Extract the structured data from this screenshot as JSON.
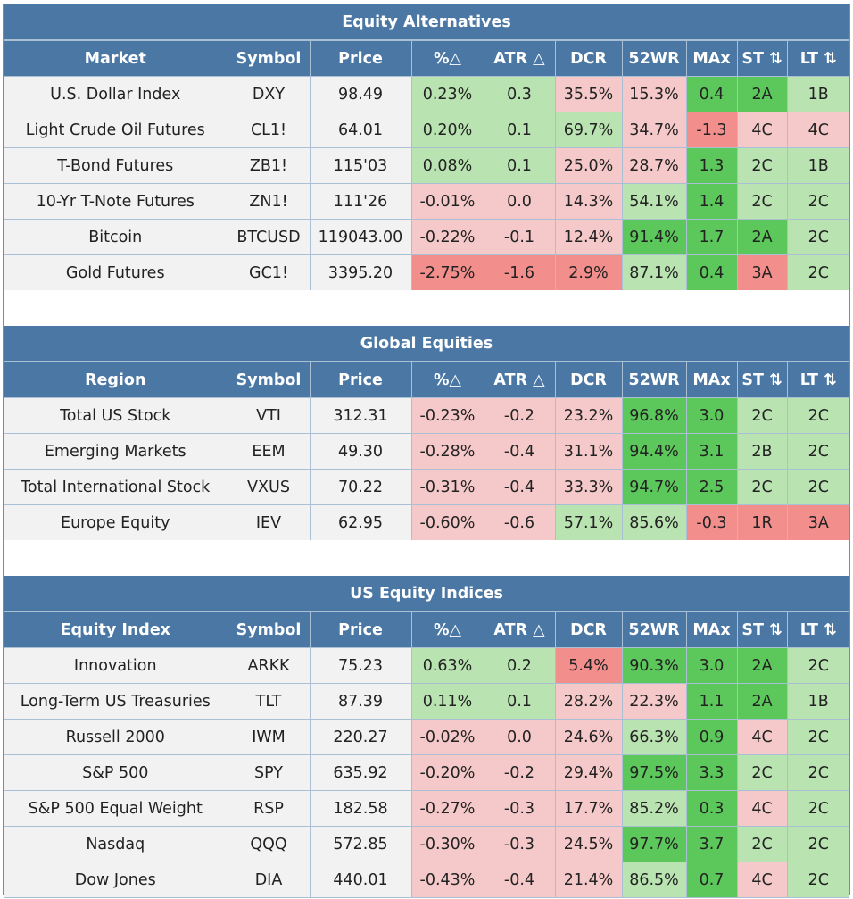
{
  "colors": {
    "header": "#4a77a4",
    "cell": "#f2f2f2",
    "green": "#b9e3b1",
    "red": "#f5c9c9",
    "dgreen": "#5cc75a",
    "dred": "#f28f8d"
  },
  "sections": [
    {
      "title": "Equity Alternatives",
      "headers": [
        "Market",
        "Symbol",
        "Price",
        "%△",
        "ATR △",
        "DCR",
        "52WR",
        "MAx",
        "ST ⇅",
        "LT ⇅"
      ],
      "rows": [
        {
          "cells": [
            "U.S. Dollar Index",
            "DXY",
            "98.49",
            "0.23%",
            "0.3",
            "35.5%",
            "15.3%",
            "0.4",
            "2A",
            "1B"
          ],
          "colors": [
            "cell",
            "cell",
            "cell",
            "green",
            "green",
            "red",
            "red",
            "dgreen",
            "dgreen",
            "green"
          ]
        },
        {
          "cells": [
            "Light Crude Oil Futures",
            "CL1!",
            "64.01",
            "0.20%",
            "0.1",
            "69.7%",
            "34.7%",
            "-1.3",
            "4C",
            "4C"
          ],
          "colors": [
            "cell",
            "cell",
            "cell",
            "green",
            "green",
            "green",
            "red",
            "dred",
            "red",
            "red"
          ]
        },
        {
          "cells": [
            "T-Bond Futures",
            "ZB1!",
            "115'03",
            "0.08%",
            "0.1",
            "25.0%",
            "28.7%",
            "1.3",
            "2C",
            "1B"
          ],
          "colors": [
            "cell",
            "cell",
            "cell",
            "green",
            "green",
            "red",
            "red",
            "dgreen",
            "green",
            "green"
          ]
        },
        {
          "cells": [
            "10-Yr T-Note Futures",
            "ZN1!",
            "111'26",
            "-0.01%",
            "0.0",
            "14.3%",
            "54.1%",
            "1.4",
            "2C",
            "2C"
          ],
          "colors": [
            "cell",
            "cell",
            "cell",
            "red",
            "red",
            "red",
            "green",
            "dgreen",
            "green",
            "green"
          ]
        },
        {
          "cells": [
            "Bitcoin",
            "BTCUSD",
            "119043.00",
            "-0.22%",
            "-0.1",
            "12.4%",
            "91.4%",
            "1.7",
            "2A",
            "2C"
          ],
          "colors": [
            "cell",
            "cell",
            "cell",
            "red",
            "red",
            "red",
            "dgreen",
            "dgreen",
            "dgreen",
            "green"
          ]
        },
        {
          "cells": [
            "Gold Futures",
            "GC1!",
            "3395.20",
            "-2.75%",
            "-1.6",
            "2.9%",
            "87.1%",
            "0.4",
            "3A",
            "2C"
          ],
          "colors": [
            "cell",
            "cell",
            "cell",
            "dred",
            "dred",
            "dred",
            "green",
            "dgreen",
            "dred",
            "green"
          ]
        }
      ]
    },
    {
      "title": "Global Equities",
      "headers": [
        "Region",
        "Symbol",
        "Price",
        "%△",
        "ATR △",
        "DCR",
        "52WR",
        "MAx",
        "ST ⇅",
        "LT ⇅"
      ],
      "rows": [
        {
          "cells": [
            "Total US Stock",
            "VTI",
            "312.31",
            "-0.23%",
            "-0.2",
            "23.2%",
            "96.8%",
            "3.0",
            "2C",
            "2C"
          ],
          "colors": [
            "cell",
            "cell",
            "cell",
            "red",
            "red",
            "red",
            "dgreen",
            "dgreen",
            "green",
            "green"
          ]
        },
        {
          "cells": [
            "Emerging Markets",
            "EEM",
            "49.30",
            "-0.28%",
            "-0.4",
            "31.1%",
            "94.4%",
            "3.1",
            "2B",
            "2C"
          ],
          "colors": [
            "cell",
            "cell",
            "cell",
            "red",
            "red",
            "red",
            "dgreen",
            "dgreen",
            "green",
            "green"
          ]
        },
        {
          "cells": [
            "Total International Stock",
            "VXUS",
            "70.22",
            "-0.31%",
            "-0.4",
            "33.3%",
            "94.7%",
            "2.5",
            "2C",
            "2C"
          ],
          "colors": [
            "cell",
            "cell",
            "cell",
            "red",
            "red",
            "red",
            "dgreen",
            "dgreen",
            "green",
            "green"
          ]
        },
        {
          "cells": [
            "Europe Equity",
            "IEV",
            "62.95",
            "-0.60%",
            "-0.6",
            "57.1%",
            "85.6%",
            "-0.3",
            "1R",
            "3A"
          ],
          "colors": [
            "cell",
            "cell",
            "cell",
            "red",
            "red",
            "green",
            "green",
            "dred",
            "dred",
            "dred"
          ]
        }
      ]
    },
    {
      "title": "US Equity Indices",
      "headers": [
        "Equity Index",
        "Symbol",
        "Price",
        "%△",
        "ATR △",
        "DCR",
        "52WR",
        "MAx",
        "ST ⇅",
        "LT ⇅"
      ],
      "rows": [
        {
          "cells": [
            "Innovation",
            "ARKK",
            "75.23",
            "0.63%",
            "0.2",
            "5.4%",
            "90.3%",
            "3.0",
            "2A",
            "2C"
          ],
          "colors": [
            "cell",
            "cell",
            "cell",
            "green",
            "green",
            "dred",
            "dgreen",
            "dgreen",
            "dgreen",
            "green"
          ]
        },
        {
          "cells": [
            "Long-Term US Treasuries",
            "TLT",
            "87.39",
            "0.11%",
            "0.1",
            "28.2%",
            "22.3%",
            "1.1",
            "2A",
            "1B"
          ],
          "colors": [
            "cell",
            "cell",
            "cell",
            "green",
            "green",
            "red",
            "red",
            "dgreen",
            "dgreen",
            "green"
          ]
        },
        {
          "cells": [
            "Russell 2000",
            "IWM",
            "220.27",
            "-0.02%",
            "0.0",
            "24.6%",
            "66.3%",
            "0.9",
            "4C",
            "2C"
          ],
          "colors": [
            "cell",
            "cell",
            "cell",
            "red",
            "red",
            "red",
            "green",
            "dgreen",
            "red",
            "green"
          ]
        },
        {
          "cells": [
            "S&P 500",
            "SPY",
            "635.92",
            "-0.20%",
            "-0.2",
            "29.4%",
            "97.5%",
            "3.3",
            "2C",
            "2C"
          ],
          "colors": [
            "cell",
            "cell",
            "cell",
            "red",
            "red",
            "red",
            "dgreen",
            "dgreen",
            "green",
            "green"
          ]
        },
        {
          "cells": [
            "S&P 500 Equal Weight",
            "RSP",
            "182.58",
            "-0.27%",
            "-0.3",
            "17.7%",
            "85.2%",
            "0.3",
            "4C",
            "2C"
          ],
          "colors": [
            "cell",
            "cell",
            "cell",
            "red",
            "red",
            "red",
            "green",
            "dgreen",
            "red",
            "green"
          ]
        },
        {
          "cells": [
            "Nasdaq",
            "QQQ",
            "572.85",
            "-0.30%",
            "-0.3",
            "24.5%",
            "97.7%",
            "3.7",
            "2C",
            "2C"
          ],
          "colors": [
            "cell",
            "cell",
            "cell",
            "red",
            "red",
            "red",
            "dgreen",
            "dgreen",
            "green",
            "green"
          ]
        },
        {
          "cells": [
            "Dow Jones",
            "DIA",
            "440.01",
            "-0.43%",
            "-0.4",
            "21.4%",
            "86.5%",
            "0.7",
            "4C",
            "2C"
          ],
          "colors": [
            "cell",
            "cell",
            "cell",
            "red",
            "red",
            "red",
            "green",
            "dgreen",
            "red",
            "green"
          ]
        }
      ]
    }
  ]
}
